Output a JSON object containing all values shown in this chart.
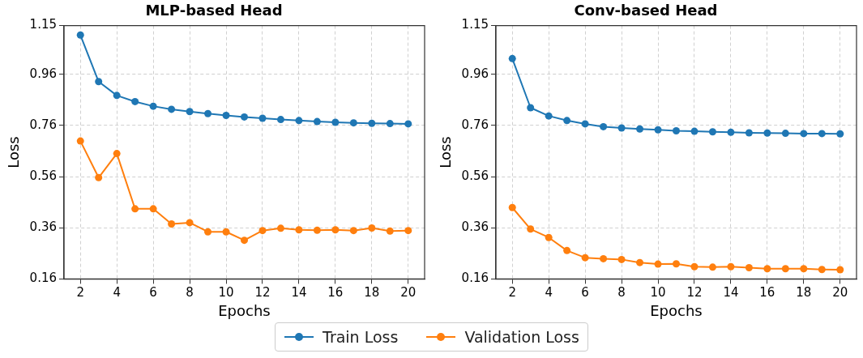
{
  "chart_data": [
    {
      "type": "line",
      "title": "MLP-based Head",
      "xlabel": "Epochs",
      "ylabel": "Loss",
      "x": [
        2,
        3,
        4,
        5,
        6,
        7,
        8,
        9,
        10,
        11,
        12,
        13,
        14,
        15,
        16,
        17,
        18,
        19,
        20
      ],
      "series": [
        {
          "name": "Train Loss",
          "color": "#1f77b4",
          "values": [
            1.113,
            0.931,
            0.877,
            0.853,
            0.835,
            0.823,
            0.814,
            0.806,
            0.799,
            0.793,
            0.788,
            0.783,
            0.779,
            0.775,
            0.772,
            0.77,
            0.768,
            0.767,
            0.766
          ]
        },
        {
          "name": "Validation Loss",
          "color": "#ff7f0e",
          "values": [
            0.699,
            0.556,
            0.65,
            0.434,
            0.434,
            0.375,
            0.38,
            0.344,
            0.344,
            0.311,
            0.349,
            0.358,
            0.352,
            0.35,
            0.352,
            0.349,
            0.359,
            0.347,
            0.349
          ]
        }
      ],
      "xlim": [
        1.1,
        20.9
      ],
      "xticks": [
        2,
        4,
        6,
        8,
        10,
        12,
        14,
        16,
        18,
        20
      ],
      "ylim": [
        0.16,
        1.15
      ],
      "yticks": [
        0.16,
        0.36,
        0.56,
        0.76,
        0.96,
        1.15
      ],
      "grid": true,
      "marker": "circle",
      "line_style": "solid",
      "legend": "bottom"
    },
    {
      "type": "line",
      "title": "Conv-based Head",
      "xlabel": "Epochs",
      "ylabel": "Loss",
      "x": [
        2,
        3,
        4,
        5,
        6,
        7,
        8,
        9,
        10,
        11,
        12,
        13,
        14,
        15,
        16,
        17,
        18,
        19,
        20
      ],
      "series": [
        {
          "color": "#1f77b4",
          "values": [
            1.021,
            0.829,
            0.797,
            0.779,
            0.766,
            0.755,
            0.75,
            0.746,
            0.743,
            0.739,
            0.737,
            0.735,
            0.733,
            0.731,
            0.73,
            0.729,
            0.728,
            0.728,
            0.727
          ]
        },
        {
          "color": "#ff7f0e",
          "values": [
            0.439,
            0.355,
            0.322,
            0.271,
            0.243,
            0.239,
            0.236,
            0.224,
            0.218,
            0.219,
            0.208,
            0.206,
            0.208,
            0.204,
            0.2,
            0.2,
            0.2,
            0.197,
            0.196
          ]
        }
      ],
      "xlim": [
        1.1,
        20.9
      ],
      "xticks": [
        2,
        4,
        6,
        8,
        10,
        12,
        14,
        16,
        18,
        20
      ],
      "ylim": [
        0.16,
        1.15
      ],
      "yticks": [
        0.16,
        0.36,
        0.56,
        0.76,
        0.96,
        1.15
      ],
      "grid": true,
      "marker": "circle",
      "line_style": "solid"
    }
  ]
}
